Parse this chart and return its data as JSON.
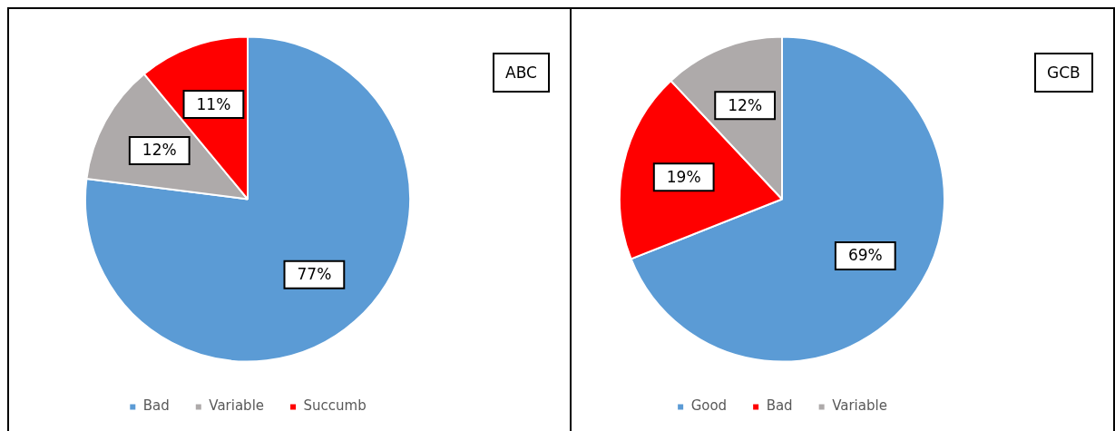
{
  "chart_data": [
    {
      "type": "pie",
      "title": "ABC",
      "categories": [
        "Bad",
        "Variable",
        "Succumb"
      ],
      "values": [
        77,
        12,
        11
      ],
      "colors": [
        "#5b9bd5",
        "#aeaaaa",
        "#ff0000"
      ],
      "value_labels": [
        "77%",
        "12%",
        "11%"
      ],
      "legend": "bottom"
    },
    {
      "type": "pie",
      "title": "GCB",
      "categories": [
        "Good",
        "Bad",
        "Variable"
      ],
      "values": [
        69,
        19,
        12
      ],
      "colors": [
        "#5b9bd5",
        "#ff0000",
        "#aeaaaa"
      ],
      "value_labels": [
        "69%",
        "19%",
        "12%"
      ],
      "legend": "bottom"
    }
  ]
}
